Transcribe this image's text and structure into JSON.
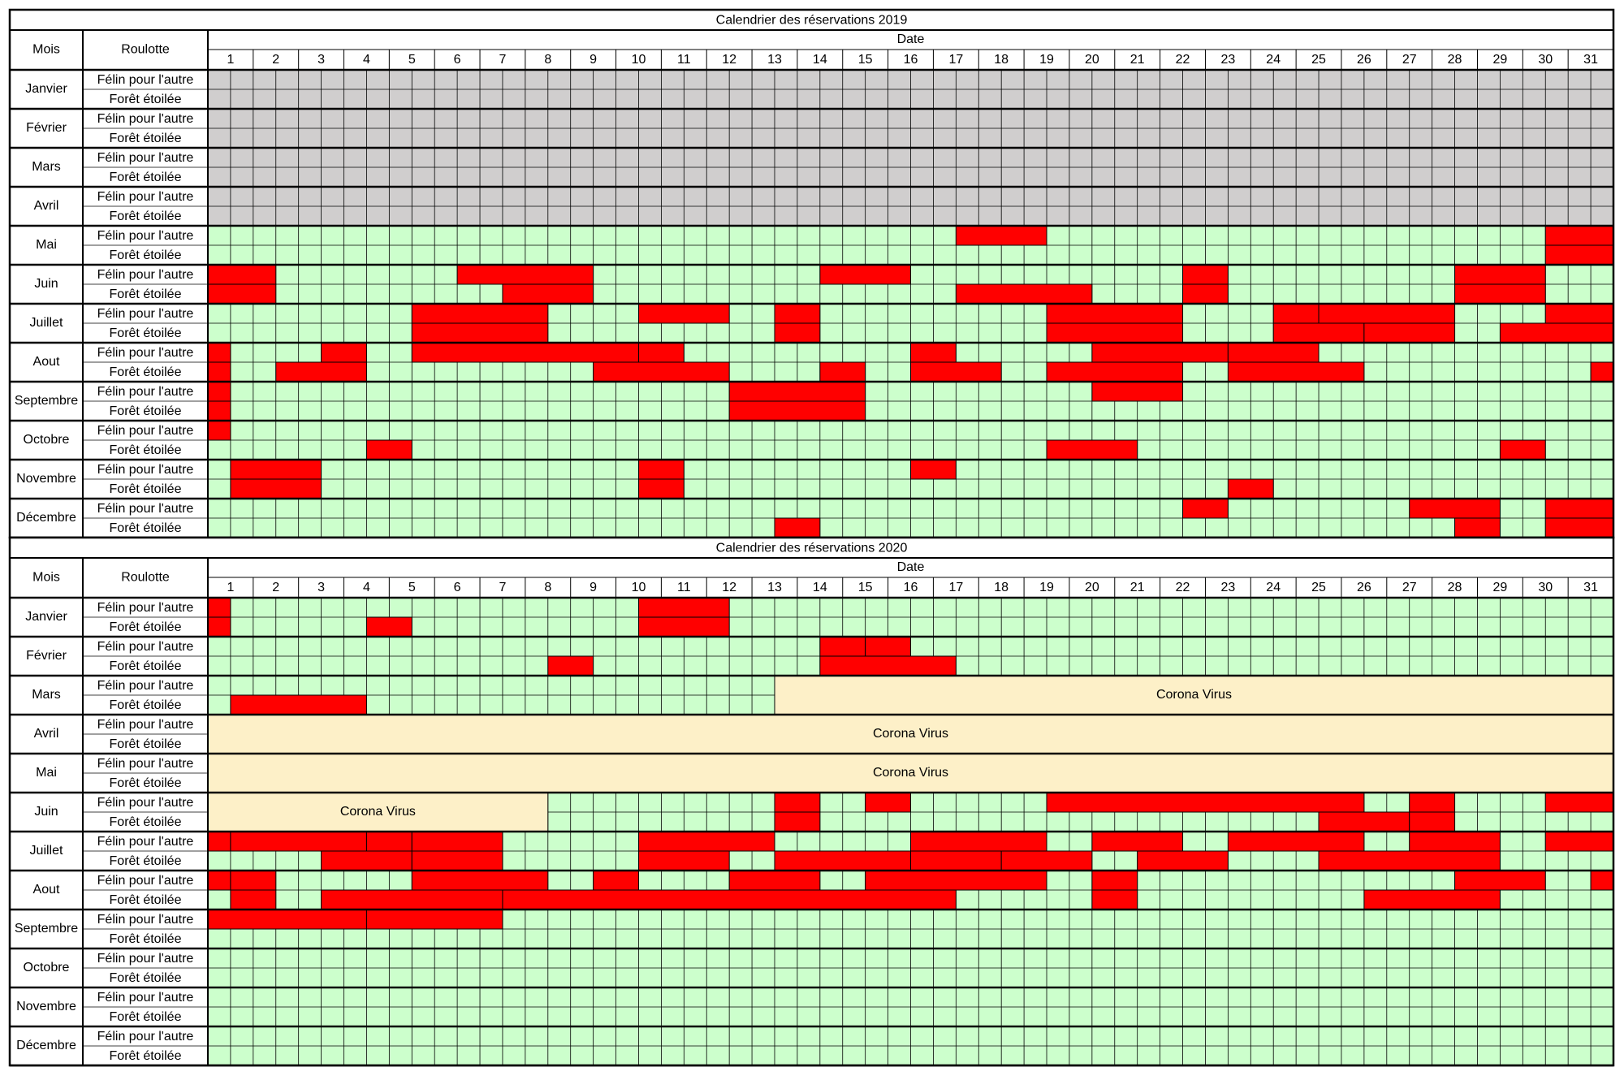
{
  "calendars": [
    {
      "title": "Calendrier des réservations 2019",
      "month_header": "Mois",
      "caravan_header": "Roulotte",
      "date_header": "Date",
      "days": [
        1,
        2,
        3,
        4,
        5,
        6,
        7,
        8,
        9,
        10,
        11,
        12,
        13,
        14,
        15,
        16,
        17,
        18,
        19,
        20,
        21,
        22,
        23,
        24,
        25,
        26,
        27,
        28,
        29,
        30,
        31
      ],
      "booking_color": "#ff0000",
      "months": [
        {
          "name": "Janvier",
          "color": "#d0cece",
          "rows": [
            {
              "caravan": "Félin pour l'autre",
              "bookings": []
            },
            {
              "caravan": "Forêt étoilée",
              "bookings": []
            }
          ]
        },
        {
          "name": "Février",
          "color": "#d0cece",
          "rows": [
            {
              "caravan": "Félin pour l'autre",
              "bookings": []
            },
            {
              "caravan": "Forêt étoilée",
              "bookings": []
            }
          ]
        },
        {
          "name": "Mars",
          "color": "#d0cece",
          "rows": [
            {
              "caravan": "Félin pour l'autre",
              "bookings": []
            },
            {
              "caravan": "Forêt étoilée",
              "bookings": []
            }
          ]
        },
        {
          "name": "Avril",
          "color": "#d0cece",
          "rows": [
            {
              "caravan": "Félin pour l'autre",
              "bookings": []
            },
            {
              "caravan": "Forêt étoilée",
              "bookings": []
            }
          ]
        },
        {
          "name": "Mai",
          "color": "#ccffcc",
          "rows": [
            {
              "caravan": "Félin pour l'autre",
              "bookings": [
                [
                  17,
                  19
                ],
                [
                  30,
                  null
                ]
              ]
            },
            {
              "caravan": "Forêt étoilée",
              "bookings": [
                [
                  30,
                  null
                ]
              ]
            }
          ]
        },
        {
          "name": "Juin",
          "color": "#ccffcc",
          "rows": [
            {
              "caravan": "Félin pour l'autre",
              "bookings": [
                [
                  null,
                  2
                ],
                [
                  6,
                  9
                ],
                [
                  14,
                  16
                ],
                [
                  22,
                  23
                ],
                [
                  28,
                  30
                ]
              ]
            },
            {
              "caravan": "Forêt étoilée",
              "bookings": [
                [
                  null,
                  2
                ],
                [
                  7,
                  9
                ],
                [
                  17,
                  20
                ],
                [
                  22,
                  23
                ],
                [
                  28,
                  30
                ]
              ]
            }
          ]
        },
        {
          "name": "Juillet",
          "color": "#ccffcc",
          "rows": [
            {
              "caravan": "Félin pour l'autre",
              "bookings": [
                [
                  5,
                  8
                ],
                [
                  10,
                  12
                ],
                [
                  13,
                  14
                ],
                [
                  19,
                  22
                ],
                [
                  24,
                  25
                ],
                [
                  25,
                  28
                ],
                [
                  30,
                  null
                ]
              ]
            },
            {
              "caravan": "Forêt étoilée",
              "bookings": [
                [
                  5,
                  8
                ],
                [
                  13,
                  14
                ],
                [
                  19,
                  22
                ],
                [
                  24,
                  26
                ],
                [
                  26,
                  28
                ],
                [
                  29,
                  null
                ]
              ]
            }
          ]
        },
        {
          "name": "Aout",
          "color": "#ccffcc",
          "rows": [
            {
              "caravan": "Félin pour l'autre",
              "bookings": [
                [
                  null,
                  1
                ],
                [
                  3,
                  4
                ],
                [
                  5,
                  10
                ],
                [
                  10,
                  11
                ],
                [
                  16,
                  17
                ],
                [
                  20,
                  23
                ],
                [
                  23,
                  25
                ]
              ]
            },
            {
              "caravan": "Forêt étoilée",
              "bookings": [
                [
                  null,
                  1
                ],
                [
                  2,
                  4
                ],
                [
                  9,
                  12
                ],
                [
                  14,
                  15
                ],
                [
                  16,
                  18
                ],
                [
                  19,
                  22
                ],
                [
                  23,
                  26
                ],
                [
                  31,
                  null
                ]
              ]
            }
          ]
        },
        {
          "name": "Septembre",
          "color": "#ccffcc",
          "rows": [
            {
              "caravan": "Félin pour l'autre",
              "bookings": [
                [
                  null,
                  1
                ],
                [
                  12,
                  15
                ],
                [
                  20,
                  22
                ]
              ]
            },
            {
              "caravan": "Forêt étoilée",
              "bookings": [
                [
                  null,
                  1
                ],
                [
                  12,
                  15
                ]
              ]
            }
          ]
        },
        {
          "name": "Octobre",
          "color": "#ccffcc",
          "rows": [
            {
              "caravan": "Félin pour l'autre",
              "bookings": [
                [
                  null,
                  1
                ]
              ]
            },
            {
              "caravan": "Forêt étoilée",
              "bookings": [
                [
                  4,
                  5
                ],
                [
                  19,
                  21
                ],
                [
                  29,
                  30
                ]
              ]
            }
          ]
        },
        {
          "name": "Novembre",
          "color": "#ccffcc",
          "rows": [
            {
              "caravan": "Félin pour l'autre",
              "bookings": [
                [
                  1,
                  3
                ],
                [
                  10,
                  11
                ],
                [
                  16,
                  17
                ]
              ]
            },
            {
              "caravan": "Forêt étoilée",
              "bookings": [
                [
                  1,
                  3
                ],
                [
                  10,
                  11
                ],
                [
                  23,
                  24
                ]
              ]
            }
          ]
        },
        {
          "name": "Décembre",
          "color": "#ccffcc",
          "rows": [
            {
              "caravan": "Félin pour l'autre",
              "bookings": [
                [
                  22,
                  23
                ],
                [
                  27,
                  29
                ],
                [
                  30,
                  null
                ]
              ]
            },
            {
              "caravan": "Forêt étoilée",
              "bookings": [
                [
                  13,
                  14
                ],
                [
                  28,
                  29
                ],
                [
                  30,
                  null
                ]
              ]
            }
          ]
        }
      ]
    },
    {
      "title": "Calendrier des réservations 2020",
      "month_header": "Mois",
      "caravan_header": "Roulotte",
      "date_header": "Date",
      "days": [
        1,
        2,
        3,
        4,
        5,
        6,
        7,
        8,
        9,
        10,
        11,
        12,
        13,
        14,
        15,
        16,
        17,
        18,
        19,
        20,
        21,
        22,
        23,
        24,
        25,
        26,
        27,
        28,
        29,
        30,
        31
      ],
      "booking_color": "#ff0000",
      "months": [
        {
          "name": "Janvier",
          "color": "#ccffcc",
          "rows": [
            {
              "caravan": "Félin pour l'autre",
              "bookings": [
                [
                  null,
                  1
                ],
                [
                  10,
                  12
                ]
              ]
            },
            {
              "caravan": "Forêt étoilée",
              "bookings": [
                [
                  null,
                  1
                ],
                [
                  4,
                  5
                ],
                [
                  10,
                  12
                ]
              ]
            }
          ]
        },
        {
          "name": "Février",
          "color": "#ccffcc",
          "rows": [
            {
              "caravan": "Félin pour l'autre",
              "bookings": [
                [
                  14,
                  15
                ],
                [
                  15,
                  16
                ]
              ]
            },
            {
              "caravan": "Forêt étoilée",
              "bookings": [
                [
                  8,
                  9
                ],
                [
                  14,
                  17
                ]
              ]
            }
          ]
        },
        {
          "name": "Mars",
          "color": "#ccffcc",
          "rows": [
            {
              "caravan": "Félin pour l'autre",
              "bookings": []
            },
            {
              "caravan": "Forêt étoilée",
              "bookings": [
                [
                  1,
                  4
                ]
              ]
            }
          ],
          "blocks": [
            {
              "from": 13,
              "to": null,
              "label": "Corona Virus",
              "color": "#fdf0c8"
            }
          ]
        },
        {
          "name": "Avril",
          "color": "#ccffcc",
          "rows": [
            {
              "caravan": "Félin pour l'autre",
              "bookings": []
            },
            {
              "caravan": "Forêt étoilée",
              "bookings": []
            }
          ],
          "blocks": [
            {
              "from": null,
              "to": null,
              "label": "Corona Virus",
              "color": "#fdf0c8"
            }
          ]
        },
        {
          "name": "Mai",
          "color": "#ccffcc",
          "rows": [
            {
              "caravan": "Félin pour l'autre",
              "bookings": []
            },
            {
              "caravan": "Forêt étoilée",
              "bookings": []
            }
          ],
          "blocks": [
            {
              "from": null,
              "to": null,
              "label": "Corona Virus",
              "color": "#fdf0c8"
            }
          ]
        },
        {
          "name": "Juin",
          "color": "#ccffcc",
          "rows": [
            {
              "caravan": "Félin pour l'autre",
              "bookings": [
                [
                  13,
                  14
                ],
                [
                  15,
                  16
                ],
                [
                  19,
                  26
                ],
                [
                  27,
                  28
                ],
                [
                  30,
                  null
                ]
              ]
            },
            {
              "caravan": "Forêt étoilée",
              "bookings": [
                [
                  13,
                  14
                ],
                [
                  25,
                  27
                ],
                [
                  27,
                  28
                ]
              ]
            }
          ],
          "blocks": [
            {
              "from": null,
              "to": 8,
              "label": "Corona Virus",
              "color": "#fdf0c8"
            }
          ]
        },
        {
          "name": "Juillet",
          "color": "#ccffcc",
          "rows": [
            {
              "caravan": "Félin pour l'autre",
              "bookings": [
                [
                  null,
                  1
                ],
                [
                  1,
                  4
                ],
                [
                  4,
                  5
                ],
                [
                  5,
                  7
                ],
                [
                  10,
                  13
                ],
                [
                  16,
                  19
                ],
                [
                  20,
                  22
                ],
                [
                  23,
                  26
                ],
                [
                  27,
                  29
                ],
                [
                  30,
                  null
                ]
              ]
            },
            {
              "caravan": "Forêt étoilée",
              "bookings": [
                [
                  3,
                  5
                ],
                [
                  5,
                  7
                ],
                [
                  10,
                  12
                ],
                [
                  13,
                  16
                ],
                [
                  16,
                  18
                ],
                [
                  18,
                  20
                ],
                [
                  21,
                  23
                ],
                [
                  25,
                  29
                ]
              ]
            }
          ]
        },
        {
          "name": "Aout",
          "color": "#ccffcc",
          "rows": [
            {
              "caravan": "Félin pour l'autre",
              "bookings": [
                [
                  null,
                  1
                ],
                [
                  1,
                  2
                ],
                [
                  5,
                  8
                ],
                [
                  9,
                  10
                ],
                [
                  12,
                  14
                ],
                [
                  15,
                  19
                ],
                [
                  20,
                  21
                ],
                [
                  28,
                  30
                ],
                [
                  31,
                  null
                ]
              ]
            },
            {
              "caravan": "Forêt étoilée",
              "bookings": [
                [
                  1,
                  2
                ],
                [
                  3,
                  7
                ],
                [
                  7,
                  17
                ],
                [
                  20,
                  21
                ],
                [
                  26,
                  29
                ]
              ]
            }
          ]
        },
        {
          "name": "Septembre",
          "color": "#ccffcc",
          "rows": [
            {
              "caravan": "Félin pour l'autre",
              "bookings": [
                [
                  null,
                  4
                ],
                [
                  4,
                  7
                ]
              ]
            },
            {
              "caravan": "Forêt étoilée",
              "bookings": []
            }
          ]
        },
        {
          "name": "Octobre",
          "color": "#ccffcc",
          "rows": [
            {
              "caravan": "Félin pour l'autre",
              "bookings": []
            },
            {
              "caravan": "Forêt étoilée",
              "bookings": []
            }
          ]
        },
        {
          "name": "Novembre",
          "color": "#ccffcc",
          "rows": [
            {
              "caravan": "Félin pour l'autre",
              "bookings": []
            },
            {
              "caravan": "Forêt étoilée",
              "bookings": []
            }
          ]
        },
        {
          "name": "Décembre",
          "color": "#ccffcc",
          "rows": [
            {
              "caravan": "Félin pour l'autre",
              "bookings": []
            },
            {
              "caravan": "Forêt étoilée",
              "bookings": []
            }
          ]
        }
      ]
    }
  ]
}
